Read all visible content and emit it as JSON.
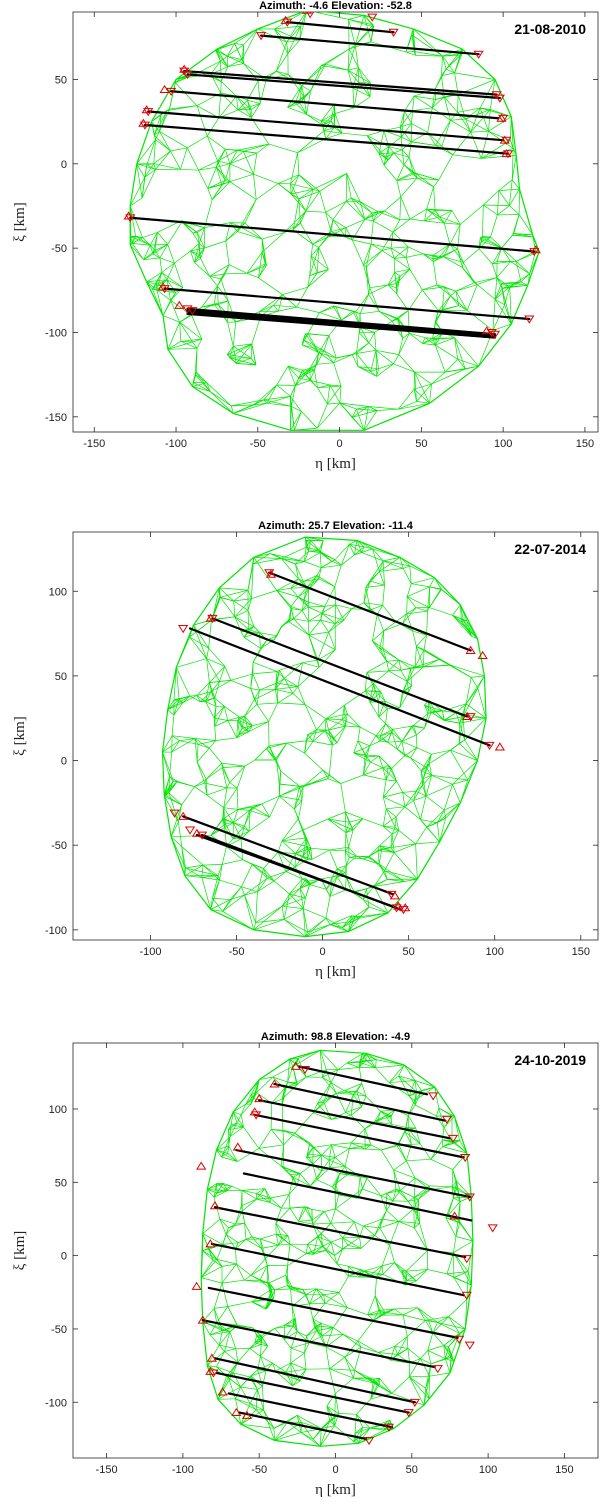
{
  "colors": {
    "mesh": "#00e600",
    "chord": "#000000",
    "marker": "#e00000",
    "axes": "#262626",
    "background": "#ffffff"
  },
  "chart_data": [
    {
      "type": "scatter",
      "title": "Azimuth: -4.6 Elevation: -52.8",
      "date": "21-08-2010",
      "xlabel": "η [km]",
      "ylabel": "ξ [km]",
      "xlim": [
        -163,
        158
      ],
      "ylim": [
        -159,
        90
      ],
      "xticks": [
        -150,
        -100,
        -50,
        0,
        50,
        100,
        150
      ],
      "yticks": [
        -150,
        -100,
        -50,
        0,
        50
      ],
      "grid": false,
      "shape_outline": [
        [
          -20,
          91
        ],
        [
          15,
          88
        ],
        [
          45,
          80
        ],
        [
          75,
          68
        ],
        [
          95,
          50
        ],
        [
          105,
          28
        ],
        [
          108,
          5
        ],
        [
          110,
          -15
        ],
        [
          118,
          -42
        ],
        [
          122,
          -52
        ],
        [
          115,
          -72
        ],
        [
          105,
          -95
        ],
        [
          85,
          -120
        ],
        [
          55,
          -142
        ],
        [
          15,
          -158
        ],
        [
          -30,
          -158
        ],
        [
          -65,
          -148
        ],
        [
          -90,
          -132
        ],
        [
          -105,
          -110
        ],
        [
          -108,
          -90
        ],
        [
          -118,
          -70
        ],
        [
          -128,
          -48
        ],
        [
          -128,
          -25
        ],
        [
          -124,
          0
        ],
        [
          -115,
          25
        ],
        [
          -100,
          50
        ],
        [
          -75,
          68
        ],
        [
          -50,
          80
        ]
      ],
      "chords": [
        {
          "x": [
            -32,
            33
          ],
          "y": [
            84,
            78
          ]
        },
        {
          "x": [
            -48,
            85
          ],
          "y": [
            76,
            65
          ]
        },
        {
          "x": [
            -95,
            96
          ],
          "y": [
            55,
            41
          ]
        },
        {
          "x": [
            -93,
            98
          ],
          "y": [
            53,
            39
          ]
        },
        {
          "x": [
            -117,
            100
          ],
          "y": [
            31,
            14
          ]
        },
        {
          "x": [
            -119,
            103
          ],
          "y": [
            23,
            6
          ]
        },
        {
          "x": [
            -103,
            97
          ],
          "y": [
            43,
            27
          ]
        },
        {
          "x": [
            -128,
            119
          ],
          "y": [
            -32,
            -52
          ]
        },
        {
          "x": [
            -107,
            116
          ],
          "y": [
            -74,
            -92
          ]
        },
        {
          "x": [
            -93,
            95
          ],
          "y": [
            -86,
            -101
          ]
        },
        {
          "x": [
            -93,
            95
          ],
          "y": [
            -87,
            -102
          ]
        },
        {
          "x": [
            -93,
            95
          ],
          "y": [
            -88,
            -103
          ]
        },
        {
          "x": [
            -93,
            95
          ],
          "y": [
            -89,
            -103
          ]
        }
      ],
      "disappear_markers": [
        [
          -18,
          89
        ],
        [
          20,
          87
        ],
        [
          -32,
          84
        ],
        [
          33,
          78
        ],
        [
          -48,
          76
        ],
        [
          85,
          65
        ],
        [
          -95,
          55
        ],
        [
          -93,
          53
        ],
        [
          96,
          41
        ],
        [
          98,
          39
        ],
        [
          100,
          27
        ],
        [
          -117,
          31
        ],
        [
          -119,
          23
        ],
        [
          102,
          14
        ],
        [
          103,
          6
        ],
        [
          -103,
          43
        ],
        [
          -128,
          -32
        ],
        [
          119,
          -52
        ],
        [
          -107,
          -74
        ],
        [
          -93,
          -86
        ],
        [
          -90,
          -87
        ],
        [
          116,
          -92
        ],
        [
          95,
          -101
        ],
        [
          93,
          -100
        ]
      ],
      "reappear_markers": [
        [
          -20,
          91
        ],
        [
          -33,
          85
        ],
        [
          -95,
          56
        ],
        [
          -107,
          44
        ],
        [
          -118,
          32
        ],
        [
          -120,
          24
        ],
        [
          -129,
          -31
        ],
        [
          -108,
          -73
        ],
        [
          -98,
          -84
        ],
        [
          90,
          -99
        ],
        [
          120,
          -51
        ],
        [
          101,
          14
        ],
        [
          102,
          6
        ],
        [
          99,
          27
        ]
      ]
    },
    {
      "type": "scatter",
      "title": "Azimuth: 25.7 Elevation: -11.4",
      "date": "22-07-2014",
      "xlabel": "η [km]",
      "ylabel": "ξ [km]",
      "xlim": [
        -145,
        160
      ],
      "ylim": [
        -106,
        135
      ],
      "xticks": [
        -100,
        -50,
        0,
        50,
        100,
        150
      ],
      "yticks": [
        -100,
        -50,
        0,
        50,
        100
      ],
      "grid": false,
      "shape_outline": [
        [
          -10,
          132
        ],
        [
          20,
          130
        ],
        [
          45,
          120
        ],
        [
          65,
          108
        ],
        [
          80,
          92
        ],
        [
          90,
          72
        ],
        [
          94,
          50
        ],
        [
          95,
          25
        ],
        [
          90,
          0
        ],
        [
          80,
          -25
        ],
        [
          68,
          -48
        ],
        [
          55,
          -70
        ],
        [
          38,
          -90
        ],
        [
          15,
          -101
        ],
        [
          -10,
          -104
        ],
        [
          -40,
          -100
        ],
        [
          -65,
          -88
        ],
        [
          -80,
          -68
        ],
        [
          -88,
          -45
        ],
        [
          -92,
          -20
        ],
        [
          -93,
          5
        ],
        [
          -90,
          30
        ],
        [
          -85,
          55
        ],
        [
          -75,
          80
        ],
        [
          -60,
          102
        ],
        [
          -40,
          120
        ]
      ],
      "chords": [
        {
          "x": [
            -31,
            86
          ],
          "y": [
            111,
            65
          ]
        },
        {
          "x": [
            -64,
            84
          ],
          "y": [
            84,
            26
          ]
        },
        {
          "x": [
            -77,
            97
          ],
          "y": [
            78,
            9
          ]
        },
        {
          "x": [
            -81,
            41
          ],
          "y": [
            -33,
            -79
          ]
        },
        {
          "x": [
            -73,
            43
          ],
          "y": [
            -44,
            -87
          ]
        },
        {
          "x": [
            -70,
            45
          ],
          "y": [
            -44,
            -88
          ]
        }
      ],
      "disappear_markers": [
        [
          -31,
          111
        ],
        [
          -64,
          84
        ],
        [
          -81,
          78
        ],
        [
          86,
          26
        ],
        [
          97,
          9
        ],
        [
          -86,
          -31
        ],
        [
          -77,
          -41
        ],
        [
          -70,
          -44
        ],
        [
          40,
          -79
        ],
        [
          43,
          -87
        ],
        [
          47,
          -88
        ]
      ],
      "reappear_markers": [
        [
          -30,
          110
        ],
        [
          -65,
          84
        ],
        [
          86,
          65
        ],
        [
          93,
          62
        ],
        [
          84,
          26
        ],
        [
          103,
          8
        ],
        [
          -81,
          -33
        ],
        [
          -73,
          -43
        ],
        [
          42,
          -80
        ],
        [
          44,
          -86
        ],
        [
          48,
          -87
        ]
      ]
    },
    {
      "type": "scatter",
      "title": "Azimuth: 98.8 Elevation: -4.9",
      "date": "24-10-2019",
      "xlabel": "η [km]",
      "ylabel": "ξ [km]",
      "xlim": [
        -172,
        172
      ],
      "ylim": [
        -138,
        145
      ],
      "xticks": [
        -150,
        -100,
        -50,
        0,
        50,
        100,
        150
      ],
      "yticks": [
        -100,
        -50,
        0,
        50,
        100
      ],
      "grid": false,
      "shape_outline": [
        [
          -10,
          140
        ],
        [
          20,
          138
        ],
        [
          45,
          130
        ],
        [
          65,
          115
        ],
        [
          78,
          95
        ],
        [
          86,
          70
        ],
        [
          89,
          40
        ],
        [
          90,
          10
        ],
        [
          89,
          -20
        ],
        [
          85,
          -50
        ],
        [
          75,
          -80
        ],
        [
          58,
          -102
        ],
        [
          38,
          -118
        ],
        [
          15,
          -128
        ],
        [
          -10,
          -130
        ],
        [
          -40,
          -126
        ],
        [
          -62,
          -115
        ],
        [
          -77,
          -98
        ],
        [
          -84,
          -75
        ],
        [
          -87,
          -45
        ],
        [
          -88,
          -15
        ],
        [
          -87,
          15
        ],
        [
          -84,
          45
        ],
        [
          -78,
          72
        ],
        [
          -67,
          98
        ],
        [
          -50,
          120
        ],
        [
          -30,
          134
        ]
      ],
      "chords": [
        {
          "x": [
            -24,
            60
          ],
          "y": [
            129,
            110
          ]
        },
        {
          "x": [
            -40,
            72
          ],
          "y": [
            117,
            92
          ]
        },
        {
          "x": [
            -50,
            75
          ],
          "y": [
            106,
            80
          ]
        },
        {
          "x": [
            -53,
            84
          ],
          "y": [
            96,
            67
          ]
        },
        {
          "x": [
            -65,
            88
          ],
          "y": [
            72,
            40
          ]
        },
        {
          "x": [
            -60,
            89
          ],
          "y": [
            56,
            24
          ]
        },
        {
          "x": [
            -79,
            85
          ],
          "y": [
            33,
            -1
          ]
        },
        {
          "x": [
            -81,
            84
          ],
          "y": [
            8,
            -27
          ]
        },
        {
          "x": [
            -83,
            80
          ],
          "y": [
            -22,
            -56
          ]
        },
        {
          "x": [
            -87,
            65
          ],
          "y": [
            -44,
            -76
          ]
        },
        {
          "x": [
            -79,
            52
          ],
          "y": [
            -70,
            -100
          ]
        },
        {
          "x": [
            -78,
            48
          ],
          "y": [
            -80,
            -107
          ]
        },
        {
          "x": [
            -70,
            37
          ],
          "y": [
            -94,
            -117
          ]
        },
        {
          "x": [
            -63,
            20
          ],
          "y": [
            -107,
            -125
          ]
        }
      ],
      "disappear_markers": [
        [
          -20,
          127
        ],
        [
          64,
          109
        ],
        [
          73,
          93
        ],
        [
          77,
          80
        ],
        [
          85,
          67
        ],
        [
          88,
          40
        ],
        [
          86,
          -2
        ],
        [
          86,
          -27
        ],
        [
          81,
          -57
        ],
        [
          88,
          -61
        ],
        [
          67,
          -77
        ],
        [
          52,
          -100
        ],
        [
          48,
          -107
        ],
        [
          35,
          -117
        ],
        [
          22,
          -126
        ],
        [
          103,
          19
        ],
        [
          -52,
          96
        ],
        [
          -80,
          -80
        ]
      ],
      "reappear_markers": [
        [
          -26,
          129
        ],
        [
          -40,
          117
        ],
        [
          -50,
          107
        ],
        [
          -64,
          74
        ],
        [
          -88,
          61
        ],
        [
          -79,
          34
        ],
        [
          -82,
          8
        ],
        [
          -91,
          -21
        ],
        [
          -87,
          -44
        ],
        [
          -81,
          -70
        ],
        [
          -82,
          -79
        ],
        [
          -74,
          -93
        ],
        [
          -65,
          -107
        ],
        [
          -58,
          -109
        ],
        [
          78,
          27
        ],
        [
          -53,
          98
        ]
      ]
    }
  ]
}
